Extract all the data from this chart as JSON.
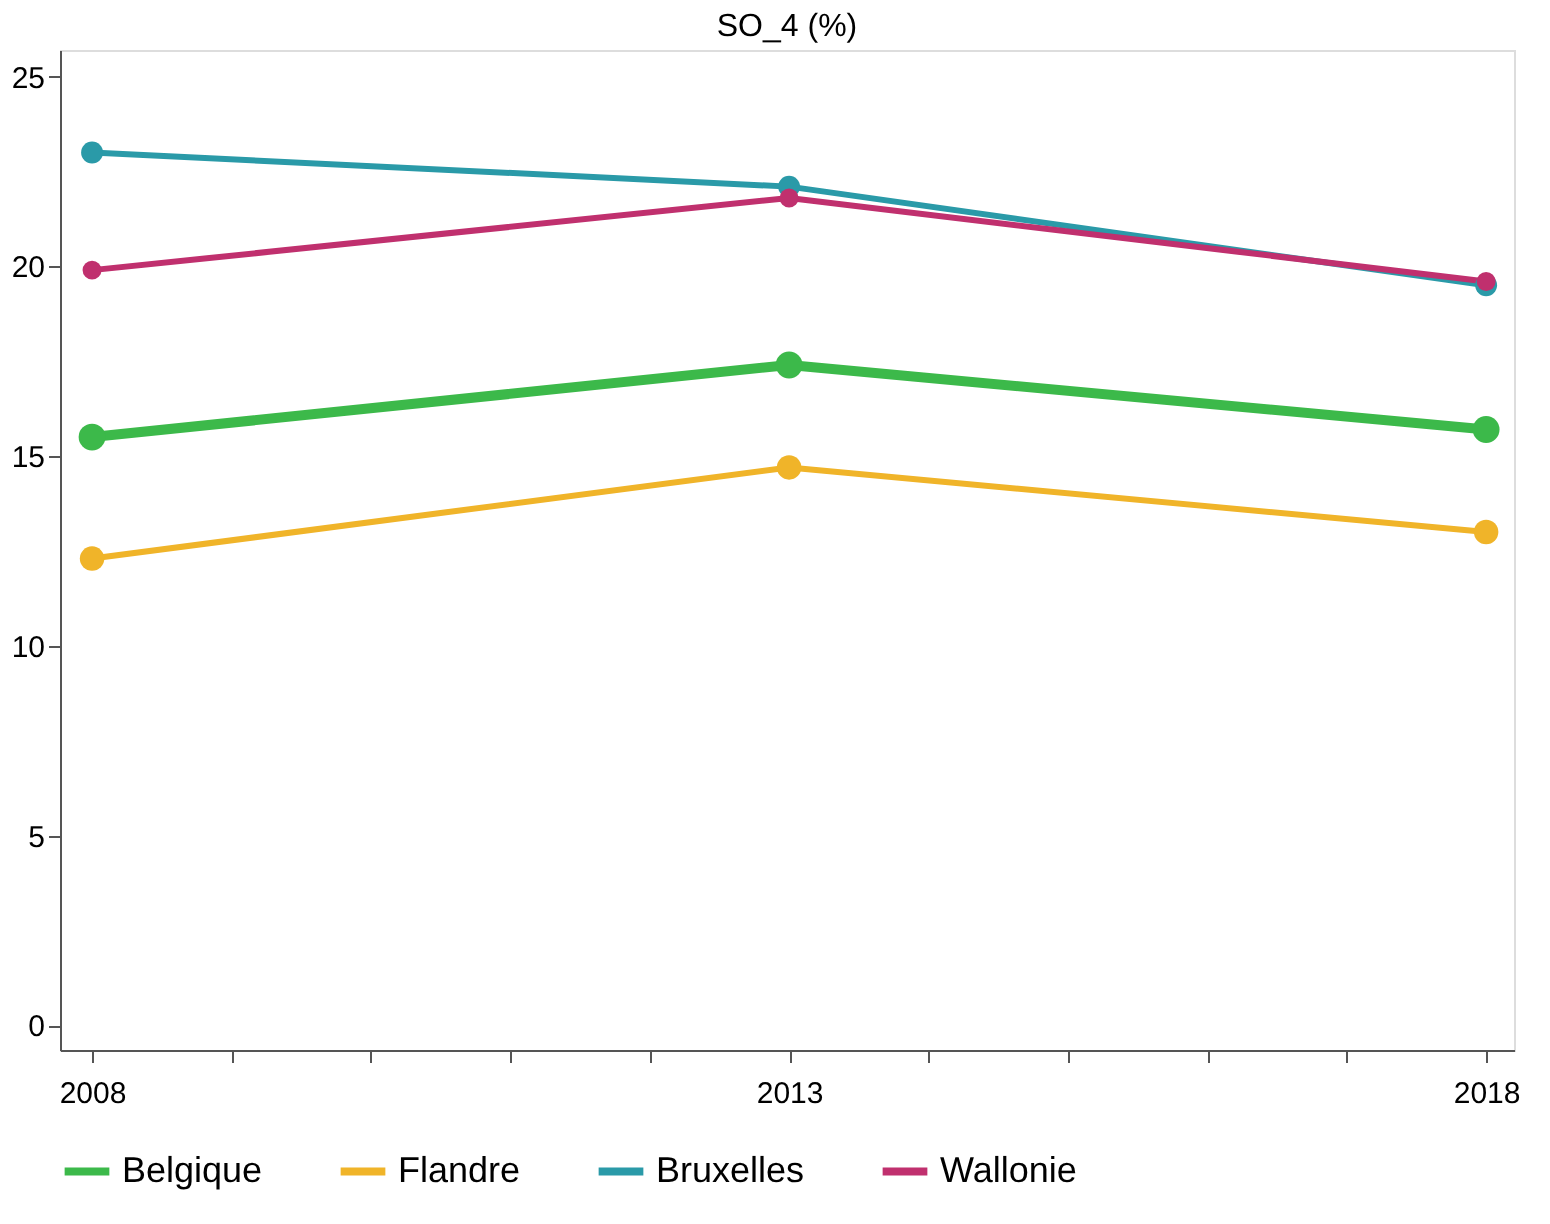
{
  "chart_data": {
    "type": "line",
    "title": "SO_4  (%)",
    "x": [
      2008,
      2013,
      2018
    ],
    "xlim": [
      2007.77,
      2018.2
    ],
    "xticks": [
      2008,
      {
        "value": 2009,
        "label": null
      },
      {
        "value": 2010,
        "label": null
      },
      {
        "value": 2011,
        "label": null
      },
      {
        "value": 2012,
        "label": null
      },
      2013,
      {
        "value": 2014,
        "label": null
      },
      {
        "value": 2015,
        "label": null
      },
      {
        "value": 2016,
        "label": null
      },
      {
        "value": 2017,
        "label": null
      },
      2018
    ],
    "ylim": [
      -0.65,
      25.7
    ],
    "yticks": [
      0,
      5,
      10,
      15,
      20,
      25
    ],
    "series": [
      {
        "name": "Belgique",
        "color": "#3cb94a",
        "values": [
          15.5,
          17.4,
          15.7
        ]
      },
      {
        "name": "Flandre",
        "color": "#f0b429",
        "values": [
          12.3,
          14.7,
          13.0
        ]
      },
      {
        "name": "Bruxelles",
        "color": "#2a9aa8",
        "values": [
          23.0,
          22.1,
          19.5
        ]
      },
      {
        "name": "Wallonie",
        "color": "#c0306e",
        "values": [
          19.9,
          21.8,
          19.6
        ]
      }
    ],
    "marker": "circle",
    "line_style": "solid",
    "legend": "bottom",
    "grid": false
  }
}
